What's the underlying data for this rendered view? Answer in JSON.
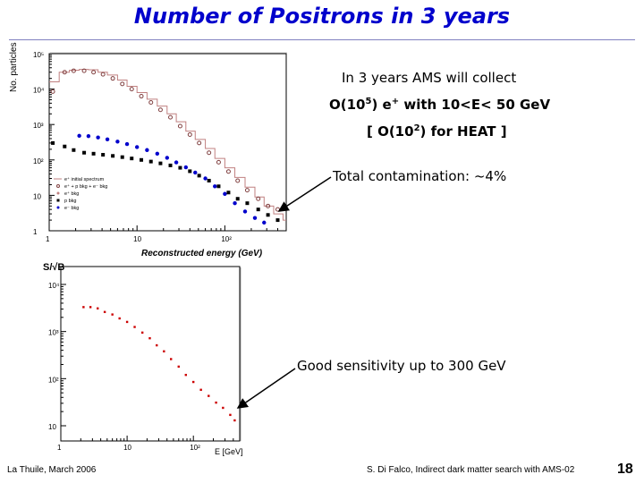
{
  "slide": {
    "title": "Number of Positrons in 3 years",
    "footer_left": "La Thuile, March 2006",
    "footer_center": "S. Di Falco, Indirect dark matter search with AMS-02",
    "page_number": "18"
  },
  "notes": {
    "collect_line": "In 3 years AMS will collect",
    "yield_line": {
      "prefix": "O(10",
      "exp": "5",
      "mid": ") e",
      "sup": "+",
      "suffix": " with 10<E< 50 GeV"
    },
    "heat_line": {
      "prefix": "[ O(10",
      "exp": "2",
      "suffix": ") for HEAT ]"
    },
    "contamination": "Total contamination: ~4%",
    "sensitivity": "Good sensitivity up to 300 GeV"
  },
  "colors": {
    "title": "#0000cc",
    "spectrum": "#c08080",
    "red_points": "#cc0000",
    "blue_points": "#0000cc",
    "black_points": "#000000"
  },
  "chart_data": [
    {
      "type": "scatter",
      "title": "",
      "xlabel": "Reconstructed energy (GeV)",
      "ylabel": "No. particles",
      "xscale": "log",
      "yscale": "log",
      "xlim": [
        1,
        500
      ],
      "ylim": [
        1,
        100000
      ],
      "x_tick_labels": [
        "1",
        "10",
        "10²"
      ],
      "y_tick_labels": [
        "1",
        "10",
        "10²",
        "10³",
        "10⁴",
        "10⁵"
      ],
      "legend": [
        "e⁺ initial spectrum",
        "e⁺ + p bkg + e⁻ bkg",
        "e⁺ bkg",
        "p bkg",
        "e⁻ bkg"
      ],
      "series": [
        {
          "name": "e⁺ initial spectrum",
          "style": "step",
          "x": [
            1.0,
            1.3,
            1.7,
            2.2,
            2.8,
            3.6,
            4.6,
            6.0,
            7.7,
            10,
            13,
            17,
            22,
            28,
            36,
            46,
            60,
            77,
            100,
            130,
            170,
            220,
            280,
            360,
            460
          ],
          "values": [
            16000,
            30000,
            34000,
            36000,
            35000,
            30000,
            25000,
            18000,
            12000,
            8000,
            5200,
            3300,
            2000,
            1200,
            650,
            380,
            210,
            110,
            60,
            32,
            17,
            9,
            5,
            3,
            2
          ]
        },
        {
          "name": "e⁺ + p bkg + e⁻ bkg",
          "style": "open-circle",
          "x": [
            1.1,
            1.5,
            1.9,
            2.5,
            3.2,
            4.1,
            5.3,
            6.8,
            8.7,
            11.2,
            14.4,
            18.5,
            24,
            31,
            40,
            51,
            66,
            85,
            110,
            140,
            180,
            240,
            310,
            400
          ],
          "values": [
            8500,
            30000,
            33000,
            33000,
            30000,
            26000,
            20000,
            14000,
            10000,
            6300,
            4200,
            2600,
            1600,
            900,
            520,
            300,
            160,
            86,
            47,
            26,
            14,
            8,
            5,
            4
          ]
        },
        {
          "name": "e⁻ bkg",
          "style": "filled-circle",
          "color": "#0000cc",
          "x": [
            2.2,
            2.8,
            3.6,
            4.6,
            6.0,
            7.7,
            10,
            13,
            17,
            22,
            28,
            36,
            46,
            60,
            77,
            100,
            130,
            170,
            220,
            280
          ],
          "values": [
            480,
            470,
            430,
            380,
            330,
            280,
            230,
            190,
            150,
            115,
            85,
            62,
            44,
            30,
            18,
            11,
            6,
            3.5,
            2.3,
            1.7
          ]
        },
        {
          "name": "p bkg",
          "style": "filled-square",
          "color": "#000000",
          "x": [
            1.1,
            1.5,
            1.9,
            2.5,
            3.2,
            4.1,
            5.3,
            6.8,
            8.7,
            11.2,
            14.4,
            18.5,
            24,
            31,
            40,
            51,
            66,
            85,
            110,
            140,
            180,
            240,
            310,
            400
          ],
          "values": [
            300,
            240,
            190,
            160,
            150,
            140,
            130,
            120,
            110,
            100,
            90,
            80,
            70,
            60,
            48,
            36,
            26,
            18,
            12,
            8,
            6,
            4,
            2.8,
            2
          ]
        }
      ]
    },
    {
      "type": "scatter",
      "title": "",
      "xlabel": "E [GeV]",
      "ylabel": "S/√B",
      "xscale": "log",
      "yscale": "log",
      "xlim": [
        1,
        500
      ],
      "ylim": [
        10,
        10000
      ],
      "x_tick_labels": [
        "1",
        "10",
        "10²"
      ],
      "y_tick_labels": [
        "10",
        "10²",
        "10³",
        "10⁴"
      ],
      "series": [
        {
          "name": "S/√B",
          "color": "#cc0000",
          "x": [
            2.2,
            2.8,
            3.6,
            4.6,
            6.0,
            7.7,
            10,
            13,
            17,
            22,
            28,
            36,
            46,
            60,
            77,
            100,
            130,
            170,
            220,
            280,
            360,
            420
          ],
          "values": [
            3300,
            3300,
            3100,
            2600,
            2300,
            1900,
            1600,
            1250,
            950,
            720,
            510,
            380,
            260,
            180,
            120,
            85,
            58,
            43,
            31,
            24,
            17,
            13
          ]
        }
      ]
    }
  ]
}
